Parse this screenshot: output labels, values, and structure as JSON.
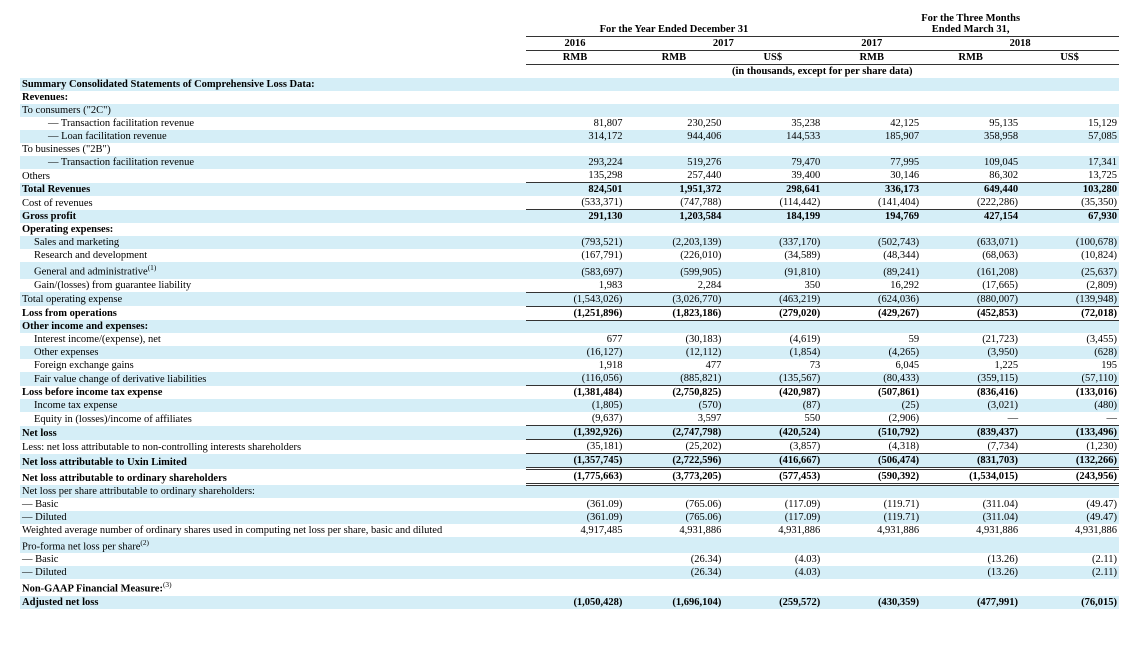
{
  "headers": {
    "year_ended": "For the Year Ended December 31",
    "three_months": "For the Three Months\nEnded March 31,",
    "y2016": "2016",
    "y2017": "2017",
    "q2017": "2017",
    "q2018": "2018",
    "rmb": "RMB",
    "usd": "US$",
    "caption": "(in thousands, except for per share data)"
  },
  "section": {
    "title": "Summary Consolidated Statements of Comprehensive Loss Data:",
    "revenues": "Revenues:",
    "to_consumers": "To consumers (\"2C\")",
    "to_businesses": "To businesses (\"2B\")",
    "opex": "Operating expenses:",
    "other": "Other income and expenses:",
    "nlp_ord": "Net loss per share attributable to ordinary shareholders:",
    "pf_nlp_hdr": "Pro-forma net loss per share",
    "pf_nlp_sup": "(2)",
    "nongaap_hdr": "Non-GAAP Financial Measure:",
    "nongaap_sup": "(3)"
  },
  "rows": {
    "trans_fac_2c": {
      "lbl": "— Transaction facilitation revenue",
      "c": [
        "81,807",
        "230,250",
        "35,238",
        "42,125",
        "95,135",
        "15,129"
      ]
    },
    "loan_fac": {
      "lbl": "— Loan facilitation revenue",
      "c": [
        "314,172",
        "944,406",
        "144,533",
        "185,907",
        "358,958",
        "57,085"
      ]
    },
    "trans_fac_2b": {
      "lbl": "— Transaction facilitation revenue",
      "c": [
        "293,224",
        "519,276",
        "79,470",
        "77,995",
        "109,045",
        "17,341"
      ]
    },
    "others": {
      "lbl": "Others",
      "c": [
        "135,298",
        "257,440",
        "39,400",
        "30,146",
        "86,302",
        "13,725"
      ]
    },
    "total_rev": {
      "lbl": "Total Revenues",
      "c": [
        "824,501",
        "1,951,372",
        "298,641",
        "336,173",
        "649,440",
        "103,280"
      ]
    },
    "cost_rev": {
      "lbl": "Cost of revenues",
      "c": [
        "(533,371)",
        "(747,788)",
        "(114,442)",
        "(141,404)",
        "(222,286)",
        "(35,350)"
      ]
    },
    "gross": {
      "lbl": "Gross profit",
      "c": [
        "291,130",
        "1,203,584",
        "184,199",
        "194,769",
        "427,154",
        "67,930"
      ]
    },
    "sm": {
      "lbl": "Sales and marketing",
      "c": [
        "(793,521)",
        "(2,203,139)",
        "(337,170)",
        "(502,743)",
        "(633,071)",
        "(100,678)"
      ]
    },
    "rd": {
      "lbl": "Research and development",
      "c": [
        "(167,791)",
        "(226,010)",
        "(34,589)",
        "(48,344)",
        "(68,063)",
        "(10,824)"
      ]
    },
    "ga": {
      "lbl": "General and administrative",
      "sup": "(1)",
      "c": [
        "(583,697)",
        "(599,905)",
        "(91,810)",
        "(89,241)",
        "(161,208)",
        "(25,637)"
      ]
    },
    "gl_guar": {
      "lbl": "Gain/(losses) from guarantee liability",
      "c": [
        "1,983",
        "2,284",
        "350",
        "16,292",
        "(17,665)",
        "(2,809)"
      ]
    },
    "opex_total": {
      "lbl": "Total operating expense",
      "c": [
        "(1,543,026)",
        "(3,026,770)",
        "(463,219)",
        "(624,036)",
        "(880,007)",
        "(139,948)"
      ]
    },
    "loss_ops": {
      "lbl": "Loss from operations",
      "c": [
        "(1,251,896)",
        "(1,823,186)",
        "(279,020)",
        "(429,267)",
        "(452,853)",
        "(72,018)"
      ]
    },
    "int": {
      "lbl": "Interest income/(expense), net",
      "c": [
        "677",
        "(30,183)",
        "(4,619)",
        "59",
        "(21,723)",
        "(3,455)"
      ]
    },
    "other_exp": {
      "lbl": "Other expenses",
      "c": [
        "(16,127)",
        "(12,112)",
        "(1,854)",
        "(4,265)",
        "(3,950)",
        "(628)"
      ]
    },
    "fx": {
      "lbl": "Foreign exchange gains",
      "c": [
        "1,918",
        "477",
        "73",
        "6,045",
        "1,225",
        "195"
      ]
    },
    "fv_deriv": {
      "lbl": "Fair value change of derivative liabilities",
      "c": [
        "(116,056)",
        "(885,821)",
        "(135,567)",
        "(80,433)",
        "(359,115)",
        "(57,110)"
      ]
    },
    "loss_pretax": {
      "lbl": "Loss before income tax expense",
      "c": [
        "(1,381,484)",
        "(2,750,825)",
        "(420,987)",
        "(507,861)",
        "(836,416)",
        "(133,016)"
      ]
    },
    "tax": {
      "lbl": "Income tax expense",
      "c": [
        "(1,805)",
        "(570)",
        "(87)",
        "(25)",
        "(3,021)",
        "(480)"
      ]
    },
    "equity_aff": {
      "lbl": "Equity in (losses)/income of affiliates",
      "c": [
        "(9,637)",
        "3,597",
        "550",
        "(2,906)",
        "—",
        "—"
      ]
    },
    "net_loss": {
      "lbl": "Net loss",
      "c": [
        "(1,392,926)",
        "(2,747,798)",
        "(420,524)",
        "(510,792)",
        "(839,437)",
        "(133,496)"
      ]
    },
    "less_nci": {
      "lbl": "Less: net loss attributable to non-controlling interests shareholders",
      "c": [
        "(35,181)",
        "(25,202)",
        "(3,857)",
        "(4,318)",
        "(7,734)",
        "(1,230)"
      ]
    },
    "nla_uxin": {
      "lbl": "Net loss attributable to Uxin Limited",
      "c": [
        "(1,357,745)",
        "(2,722,596)",
        "(416,667)",
        "(506,474)",
        "(831,703)",
        "(132,266)"
      ]
    },
    "nla_ord": {
      "lbl": "Net loss attributable to ordinary shareholders",
      "c": [
        "(1,775,663)",
        "(3,773,205)",
        "(577,453)",
        "(590,392)",
        "(1,534,015)",
        "(243,956)"
      ]
    },
    "nlp_basic": {
      "lbl": "— Basic",
      "c": [
        "(361.09)",
        "(765.06)",
        "(117.09)",
        "(119.71)",
        "(311.04)",
        "(49.47)"
      ]
    },
    "nlp_diluted": {
      "lbl": "— Diluted",
      "c": [
        "(361.09)",
        "(765.06)",
        "(117.09)",
        "(119.71)",
        "(311.04)",
        "(49.47)"
      ]
    },
    "wavg": {
      "lbl": "Weighted average number of ordinary shares used in computing net loss per share, basic and diluted",
      "c": [
        "4,917,485",
        "4,931,886",
        "4,931,886",
        "4,931,886",
        "4,931,886",
        "4,931,886"
      ]
    },
    "pf_basic": {
      "lbl": "— Basic",
      "c": [
        "",
        "(26.34)",
        "(4.03)",
        "",
        "(13.26)",
        "(2.11)"
      ]
    },
    "pf_diluted": {
      "lbl": "— Diluted",
      "c": [
        "",
        "(26.34)",
        "(4.03)",
        "",
        "(13.26)",
        "(2.11)"
      ]
    },
    "adj_nl": {
      "lbl": "Adjusted net loss",
      "c": [
        "(1,050,428)",
        "(1,696,104)",
        "(259,572)",
        "(430,359)",
        "(477,991)",
        "(76,015)"
      ]
    }
  }
}
